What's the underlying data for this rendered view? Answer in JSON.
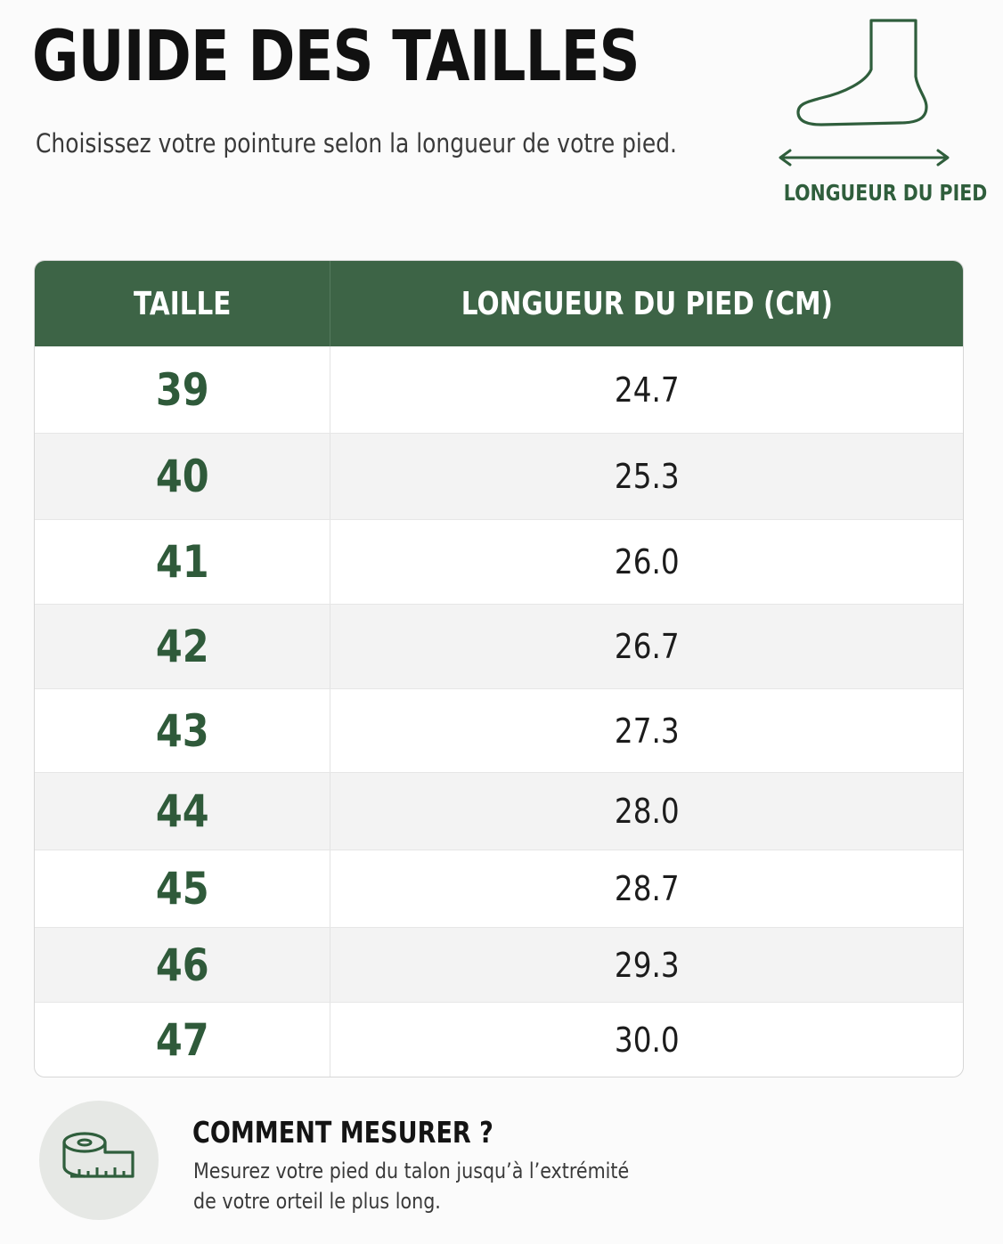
{
  "header": {
    "title": "GUIDE DES TAILLES",
    "subtitle": "Choisissez votre pointure selon la longueur de votre pied."
  },
  "illustration": {
    "icon": "foot-icon",
    "label": "LONGUEUR DU PIED"
  },
  "table": {
    "columns": [
      "TAILLE",
      "LONGUEUR DU PIED (CM)"
    ],
    "rows": [
      {
        "size": "39",
        "length": "24.7"
      },
      {
        "size": "40",
        "length": "25.3"
      },
      {
        "size": "41",
        "length": "26.0"
      },
      {
        "size": "42",
        "length": "26.7"
      },
      {
        "size": "43",
        "length": "27.3"
      },
      {
        "size": "44",
        "length": "28.0"
      },
      {
        "size": "45",
        "length": "28.7"
      },
      {
        "size": "46",
        "length": "29.3"
      },
      {
        "size": "47",
        "length": "30.0"
      }
    ]
  },
  "howto": {
    "icon": "measuring-tape-icon",
    "title": "COMMENT MESURER ?",
    "line1": "Mesurez votre pied du talon jusqu’à l’extrémité",
    "line2": "de votre orteil le plus long."
  },
  "colors": {
    "accent_green": "#3d6446",
    "size_text_green": "#2f5a3a",
    "background": "#fbfbfb"
  }
}
